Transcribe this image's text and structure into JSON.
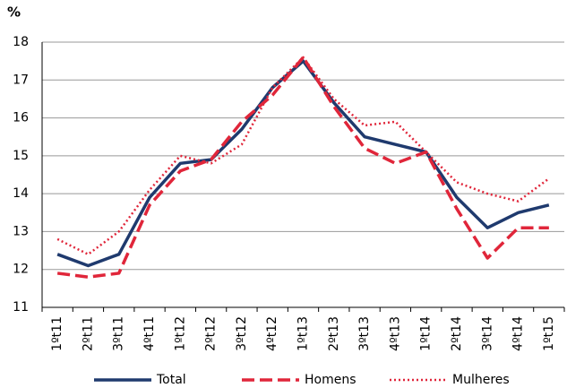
{
  "chart_data": {
    "type": "line",
    "y_label": "%",
    "categories": [
      "1ºt11",
      "2ºt11",
      "3ºt11",
      "4ºt11",
      "1ºt12",
      "2ºt12",
      "3ºt12",
      "4ºt12",
      "1ºt13",
      "2ºt13",
      "3ºt13",
      "4ºt13",
      "1ºt14",
      "2ºt14",
      "3ºt14",
      "4ºt14",
      "1ºt15"
    ],
    "series": [
      {
        "name": "Total",
        "color": "#1f3a6e",
        "dash": "solid",
        "values": [
          12.4,
          12.1,
          12.4,
          13.9,
          14.8,
          14.9,
          15.7,
          16.8,
          17.5,
          16.4,
          15.5,
          15.3,
          15.1,
          13.9,
          13.1,
          13.5,
          13.7
        ]
      },
      {
        "name": "Homens",
        "color": "#e0263a",
        "dash": "dashed",
        "values": [
          11.9,
          11.8,
          11.9,
          13.7,
          14.6,
          14.9,
          15.9,
          16.6,
          17.6,
          16.3,
          15.2,
          14.8,
          15.1,
          13.6,
          12.3,
          13.1,
          13.1
        ]
      },
      {
        "name": "Mulheres",
        "color": "#e0263a",
        "dash": "dotted",
        "values": [
          12.8,
          12.4,
          13.0,
          14.1,
          15.0,
          14.8,
          15.3,
          16.8,
          17.6,
          16.5,
          15.8,
          15.9,
          15.1,
          14.3,
          14.0,
          13.8,
          14.4
        ]
      }
    ],
    "ylim": [
      11,
      18
    ],
    "yticks": [
      11,
      12,
      13,
      14,
      15,
      16,
      17,
      18
    ],
    "grid": true
  }
}
